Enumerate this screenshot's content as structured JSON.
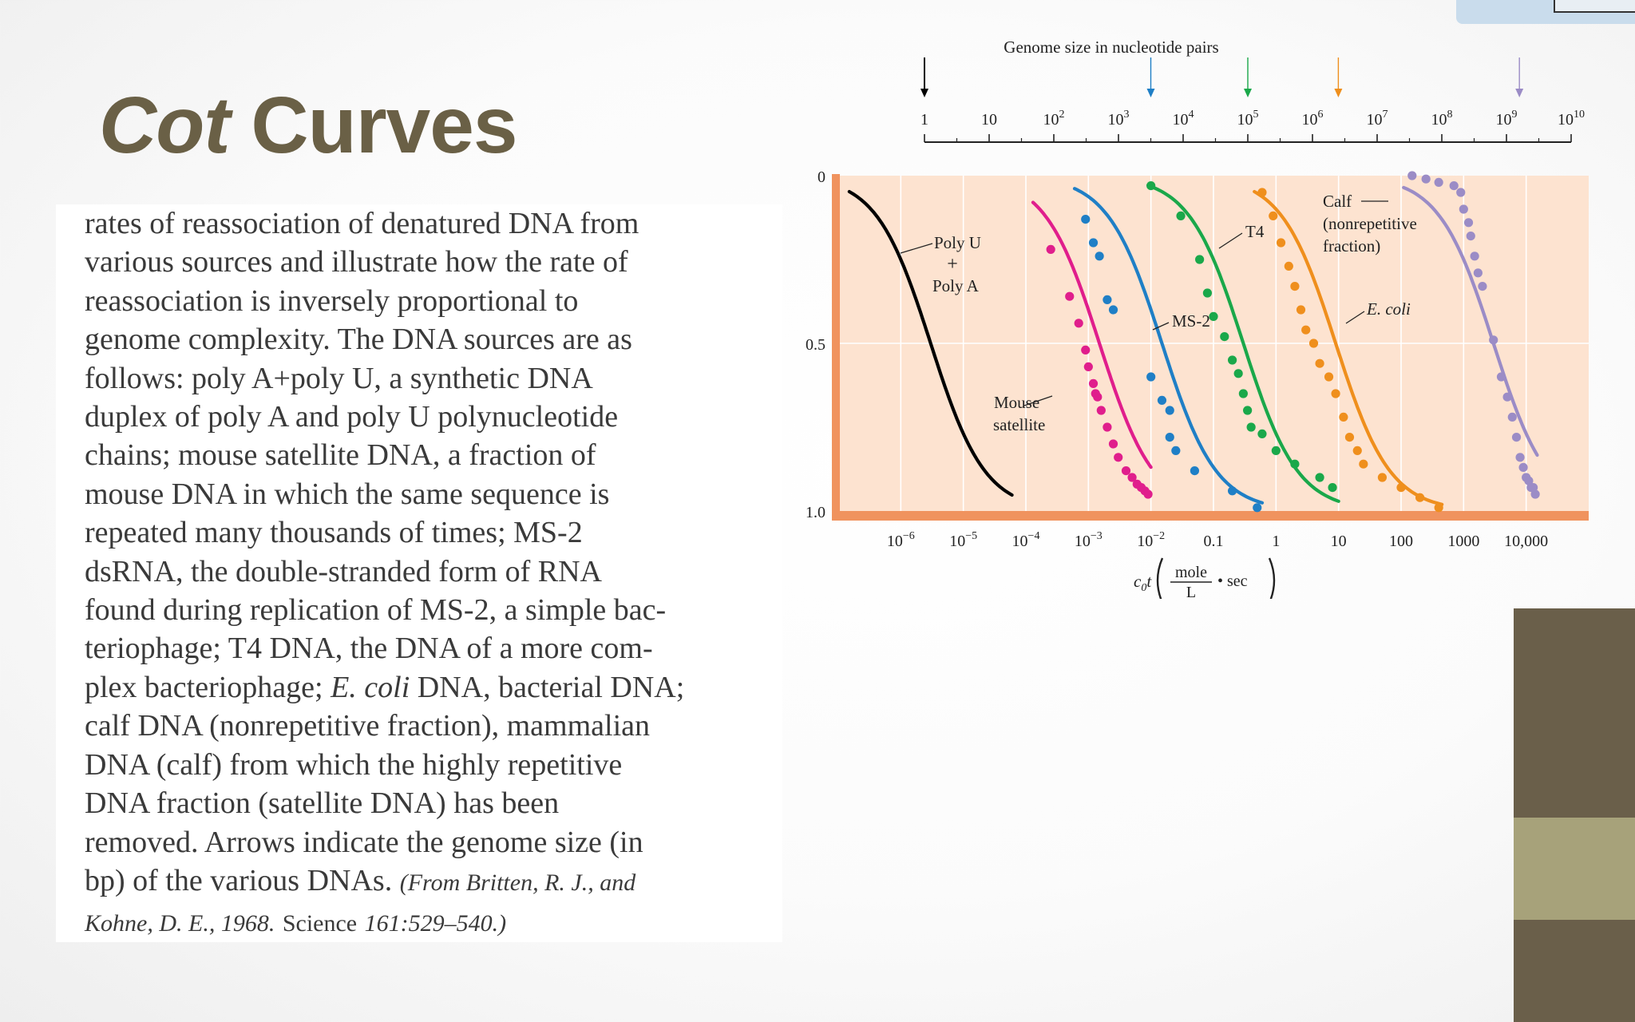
{
  "slide": {
    "title_italic": "Cot",
    "title_rest": " Curves"
  },
  "caption": {
    "lines": [
      "rates of reassociation of denatured DNA from",
      "various sources and illustrate how the rate of",
      "reassociation is inversely proportional to",
      "genome complexity. The DNA sources are as",
      "follows: poly A+poly U, a synthetic DNA",
      "duplex of poly A and poly U polynucleotide",
      "chains; mouse satellite DNA, a fraction of",
      "mouse DNA in which the same sequence is",
      "repeated many thousands of times; MS-2",
      "dsRNA, the double-stranded form of RNA",
      "found during replication of MS-2, a simple bac-",
      "teriophage; T4 DNA, the DNA of a more com-",
      "plex bacteriophage;",
      "calf DNA (nonrepetitive fraction), mammalian",
      "DNA (calf) from which the highly repetitive",
      "DNA fraction (satellite DNA) has been",
      "removed. Arrows indicate the genome size (in",
      "bp) of the various DNAs."
    ],
    "line13_italic": "E. coli",
    "line13_rest": " DNA, bacterial DNA;",
    "cite_1": "(From Britten, R. J., and",
    "cite_2a": "Kohne, D. E., 1968.",
    "cite_2b": "Science",
    "cite_2c": "161:529–540.)"
  },
  "chart_data": {
    "type": "line",
    "xlabel": "c₀t (mole/L · sec)",
    "xlabel_parts": {
      "c": "c",
      "sub": "0",
      "t": "t",
      "num": "mole",
      "den": "L",
      "sec": "• sec"
    },
    "x_scale": "log",
    "xlim": [
      1e-07,
      100000.0
    ],
    "ylim": [
      0,
      1.0
    ],
    "y_inverted": true,
    "y_ticks": [
      "0",
      "0.5",
      "1.0"
    ],
    "x_ticks": [
      {
        "v": 1e-06,
        "label": "10",
        "sup": "−6"
      },
      {
        "v": 1e-05,
        "label": "10",
        "sup": "−5"
      },
      {
        "v": 0.0001,
        "label": "10",
        "sup": "−4"
      },
      {
        "v": 0.001,
        "label": "10",
        "sup": "−3"
      },
      {
        "v": 0.01,
        "label": "10",
        "sup": "−2"
      },
      {
        "v": 0.1,
        "label": "0.1",
        "sup": ""
      },
      {
        "v": 1,
        "label": "1",
        "sup": ""
      },
      {
        "v": 10,
        "label": "10",
        "sup": ""
      },
      {
        "v": 100,
        "label": "100",
        "sup": ""
      },
      {
        "v": 1000,
        "label": "1000",
        "sup": ""
      },
      {
        "v": 10000,
        "label": "10,000",
        "sup": ""
      }
    ],
    "background": "#fde3d0",
    "axis_color": "#f0935e",
    "series": [
      {
        "name": "Poly U + Poly A",
        "color": "#000000",
        "c0t_half": 3e-06,
        "points": []
      },
      {
        "name": "Mouse satellite",
        "color": "#e01e8c",
        "c0t_half": 0.0015,
        "points": [
          [
            0.00025,
            0.22
          ],
          [
            0.0005,
            0.36
          ],
          [
            0.0007,
            0.44
          ],
          [
            0.0009,
            0.52
          ],
          [
            0.001,
            0.57
          ],
          [
            0.0012,
            0.62
          ],
          [
            0.0013,
            0.65
          ],
          [
            0.0014,
            0.66
          ],
          [
            0.0016,
            0.7
          ],
          [
            0.002,
            0.75
          ],
          [
            0.0025,
            0.8
          ],
          [
            0.003,
            0.84
          ],
          [
            0.004,
            0.88
          ],
          [
            0.005,
            0.9
          ],
          [
            0.006,
            0.92
          ],
          [
            0.007,
            0.93
          ],
          [
            0.008,
            0.94
          ],
          [
            0.009,
            0.95
          ]
        ]
      },
      {
        "name": "MS-2",
        "color": "#1f7fc6",
        "c0t_half": 0.015,
        "points": [
          [
            0.0009,
            0.13
          ],
          [
            0.0012,
            0.2
          ],
          [
            0.0015,
            0.24
          ],
          [
            0.002,
            0.37
          ],
          [
            0.0025,
            0.4
          ],
          [
            0.01,
            0.6
          ],
          [
            0.015,
            0.67
          ],
          [
            0.02,
            0.7
          ],
          [
            0.02,
            0.78
          ],
          [
            0.025,
            0.82
          ],
          [
            0.05,
            0.88
          ],
          [
            0.2,
            0.94
          ],
          [
            0.5,
            0.99
          ]
        ]
      },
      {
        "name": "T4",
        "color": "#1aa84a",
        "c0t_half": 0.3,
        "points": [
          [
            0.01,
            0.03
          ],
          [
            0.03,
            0.12
          ],
          [
            0.06,
            0.25
          ],
          [
            0.08,
            0.35
          ],
          [
            0.1,
            0.42
          ],
          [
            0.15,
            0.48
          ],
          [
            0.2,
            0.55
          ],
          [
            0.25,
            0.59
          ],
          [
            0.3,
            0.65
          ],
          [
            0.35,
            0.7
          ],
          [
            0.4,
            0.75
          ],
          [
            0.6,
            0.77
          ],
          [
            1,
            0.82
          ],
          [
            2,
            0.86
          ],
          [
            5,
            0.9
          ],
          [
            8,
            0.93
          ]
        ]
      },
      {
        "name": "E. coli",
        "color": "#ef8f1d",
        "c0t_half": 9,
        "points": [
          [
            0.6,
            0.05
          ],
          [
            0.9,
            0.12
          ],
          [
            1.2,
            0.2
          ],
          [
            1.6,
            0.27
          ],
          [
            2,
            0.33
          ],
          [
            2.5,
            0.4
          ],
          [
            3,
            0.46
          ],
          [
            4,
            0.5
          ],
          [
            5,
            0.56
          ],
          [
            7,
            0.6
          ],
          [
            9,
            0.65
          ],
          [
            12,
            0.72
          ],
          [
            15,
            0.78
          ],
          [
            20,
            0.82
          ],
          [
            25,
            0.86
          ],
          [
            50,
            0.9
          ],
          [
            100,
            0.93
          ],
          [
            200,
            0.96
          ],
          [
            400,
            0.99
          ]
        ]
      },
      {
        "name": "Calf (nonrepetitive fraction)",
        "color": "#9b8cc6",
        "c0t_half": 3000,
        "points": [
          [
            150,
            0.0
          ],
          [
            250,
            0.01
          ],
          [
            400,
            0.02
          ],
          [
            700,
            0.03
          ],
          [
            900,
            0.05
          ],
          [
            1000,
            0.1
          ],
          [
            1200,
            0.14
          ],
          [
            1300,
            0.18
          ],
          [
            1500,
            0.24
          ],
          [
            1700,
            0.29
          ],
          [
            2000,
            0.33
          ],
          [
            3000,
            0.49
          ],
          [
            4000,
            0.6
          ],
          [
            5000,
            0.66
          ],
          [
            6000,
            0.72
          ],
          [
            7000,
            0.78
          ],
          [
            8000,
            0.84
          ],
          [
            9000,
            0.87
          ],
          [
            10000,
            0.9
          ],
          [
            11000,
            0.91
          ],
          [
            12000,
            0.93
          ],
          [
            13000,
            0.93
          ],
          [
            14000,
            0.95
          ]
        ]
      }
    ],
    "labels": {
      "polyu_1": "Poly U",
      "polyu_2": "+",
      "polyu_3": "Poly A",
      "mouse_1": "Mouse",
      "mouse_2": "satellite",
      "ms2": "MS-2",
      "t4": "T4",
      "ecoli": "E. coli",
      "calf_1": "Calf",
      "calf_2": "(nonrepetitive",
      "calf_3": "fraction)"
    },
    "genome_axis": {
      "title": "Genome size in nucleotide pairs",
      "ticks": [
        {
          "label": "1",
          "sup": ""
        },
        {
          "label": "10",
          "sup": ""
        },
        {
          "label": "10",
          "sup": "2"
        },
        {
          "label": "10",
          "sup": "3"
        },
        {
          "label": "10",
          "sup": "4"
        },
        {
          "label": "10",
          "sup": "5"
        },
        {
          "label": "10",
          "sup": "6"
        },
        {
          "label": "10",
          "sup": "7"
        },
        {
          "label": "10",
          "sup": "8"
        },
        {
          "label": "10",
          "sup": "9"
        },
        {
          "label": "10",
          "sup": "10"
        }
      ],
      "arrows": [
        {
          "name": "poly-u-poly-a",
          "genome_log10": 0,
          "color": "#000000"
        },
        {
          "name": "ms2",
          "genome_log10": 3.5,
          "color": "#1f7fc6"
        },
        {
          "name": "t4",
          "genome_log10": 5.0,
          "color": "#1aa84a"
        },
        {
          "name": "e-coli",
          "genome_log10": 6.4,
          "color": "#ef8f1d"
        },
        {
          "name": "calf",
          "genome_log10": 9.2,
          "color": "#9b8cc6"
        }
      ]
    }
  },
  "decor": {
    "bar_colors": [
      "#6a5f4a",
      "#a7a27a",
      "#6a5f4a"
    ]
  }
}
